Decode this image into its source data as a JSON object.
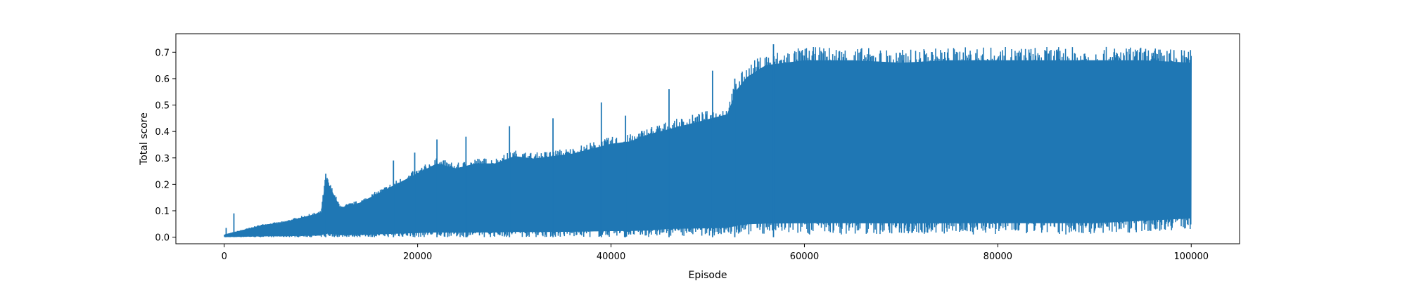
{
  "chart_data": {
    "type": "line",
    "title": "",
    "xlabel": "Episode",
    "ylabel": "Total score",
    "xlim": [
      -5000,
      105000
    ],
    "ylim": [
      -0.025,
      0.77
    ],
    "grid": false,
    "legend": "none",
    "x_ticks": [
      0,
      20000,
      40000,
      60000,
      80000,
      100000
    ],
    "x_tick_labels": [
      "0",
      "20000",
      "40000",
      "60000",
      "80000",
      "100000"
    ],
    "y_ticks": [
      0.0,
      0.1,
      0.2,
      0.3,
      0.4,
      0.5,
      0.6,
      0.7
    ],
    "y_tick_labels": [
      "0.0",
      "0.1",
      "0.2",
      "0.3",
      "0.4",
      "0.5",
      "0.6",
      "0.7"
    ],
    "series": [
      {
        "color": "#1f77b4",
        "x_range": [
          0,
          100000
        ],
        "upper_envelope": {
          "x": [
            0,
            1000,
            2000,
            4000,
            6000,
            8000,
            10000,
            10500,
            12000,
            14000,
            16000,
            18000,
            20000,
            22000,
            24000,
            26000,
            28000,
            30000,
            32000,
            34000,
            36000,
            38000,
            40000,
            42000,
            44000,
            46000,
            48000,
            50000,
            52000,
            53000,
            54000,
            56000,
            58000,
            60000,
            65000,
            70000,
            75000,
            80000,
            85000,
            90000,
            95000,
            100000
          ],
          "y": [
            0.01,
            0.02,
            0.03,
            0.05,
            0.06,
            0.08,
            0.1,
            0.24,
            0.12,
            0.14,
            0.18,
            0.22,
            0.26,
            0.3,
            0.28,
            0.3,
            0.3,
            0.33,
            0.32,
            0.33,
            0.34,
            0.36,
            0.38,
            0.39,
            0.42,
            0.44,
            0.46,
            0.48,
            0.5,
            0.6,
            0.65,
            0.7,
            0.71,
            0.72,
            0.72,
            0.71,
            0.72,
            0.72,
            0.72,
            0.72,
            0.72,
            0.71
          ]
        },
        "lower_envelope": {
          "x": [
            0,
            10000,
            20000,
            30000,
            40000,
            44000,
            46000,
            50000,
            52000,
            54000,
            56000,
            60000,
            70000,
            80000,
            90000,
            100000
          ],
          "y": [
            0.0,
            0.0,
            0.0,
            0.0,
            0.0,
            0.0,
            0.005,
            0.005,
            0.005,
            0.01,
            0.01,
            0.01,
            0.01,
            0.01,
            0.01,
            0.03
          ]
        },
        "spikes": [
          {
            "x": 200,
            "y": 0.035
          },
          {
            "x": 1000,
            "y": 0.09
          },
          {
            "x": 10500,
            "y": 0.24
          },
          {
            "x": 17500,
            "y": 0.29
          },
          {
            "x": 19700,
            "y": 0.32
          },
          {
            "x": 22000,
            "y": 0.37
          },
          {
            "x": 25000,
            "y": 0.38
          },
          {
            "x": 29500,
            "y": 0.42
          },
          {
            "x": 34000,
            "y": 0.45
          },
          {
            "x": 39000,
            "y": 0.51
          },
          {
            "x": 41500,
            "y": 0.46
          },
          {
            "x": 46000,
            "y": 0.56
          },
          {
            "x": 50500,
            "y": 0.63
          },
          {
            "x": 52800,
            "y": 0.6
          },
          {
            "x": 56800,
            "y": 0.73
          }
        ]
      }
    ]
  }
}
